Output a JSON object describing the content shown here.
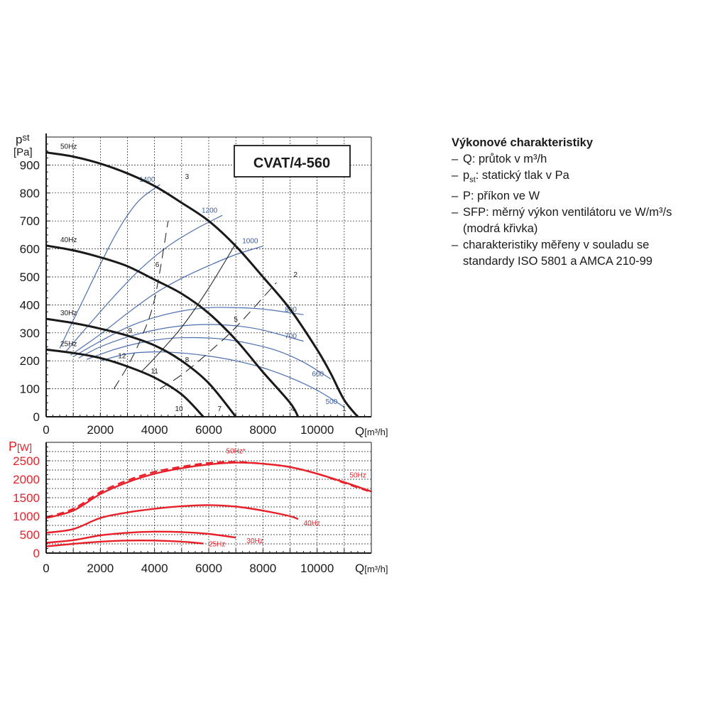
{
  "chart_data": [
    {
      "type": "line",
      "title": "CVAT/4-560",
      "ylabel_main": "p",
      "ylabel_sub": "st",
      "yunit": "[Pa]",
      "xlabel": "Q",
      "xunit": "[m³/h]",
      "xlim": [
        0,
        12000
      ],
      "ylim": [
        0,
        1000
      ],
      "grid": true,
      "xticks": [
        0,
        2000,
        4000,
        6000,
        8000,
        10000
      ],
      "yticks": [
        0,
        100,
        200,
        300,
        400,
        500,
        600,
        700,
        800,
        900
      ],
      "series": [
        {
          "name": "50Hz",
          "color": "#1a1a1a",
          "x": [
            0,
            1000,
            2000,
            3000,
            4000,
            5000,
            6000,
            7000,
            8000,
            9000,
            10000,
            10500,
            11000,
            11500
          ],
          "y": [
            945,
            930,
            905,
            870,
            825,
            765,
            700,
            610,
            500,
            385,
            240,
            155,
            60,
            0
          ]
        },
        {
          "name": "40Hz",
          "color": "#1a1a1a",
          "x": [
            0,
            1000,
            2000,
            3000,
            4000,
            5000,
            6000,
            7000,
            8000,
            9000,
            9300
          ],
          "y": [
            612,
            595,
            570,
            538,
            490,
            440,
            370,
            275,
            160,
            50,
            0
          ]
        },
        {
          "name": "30Hz",
          "color": "#1a1a1a",
          "x": [
            0,
            1000,
            2000,
            3000,
            4000,
            5000,
            6000,
            7000
          ],
          "y": [
            350,
            335,
            315,
            290,
            255,
            200,
            120,
            0
          ]
        },
        {
          "name": "25Hz",
          "color": "#1a1a1a",
          "x": [
            0,
            1000,
            2000,
            3000,
            4000,
            5000,
            5800
          ],
          "y": [
            240,
            228,
            210,
            180,
            140,
            80,
            0
          ]
        }
      ],
      "sfp_curves": [
        {
          "label": "1400",
          "x": [
            500,
            1000,
            1500,
            2000,
            2500,
            3000,
            3500,
            4200
          ],
          "y": [
            245,
            345,
            445,
            545,
            640,
            720,
            780,
            830
          ]
        },
        {
          "label": "1200",
          "x": [
            700,
            1500,
            2500,
            3500,
            4500,
            5500,
            6500
          ],
          "y": [
            230,
            320,
            430,
            530,
            610,
            670,
            720
          ]
        },
        {
          "label": "1000",
          "x": [
            900,
            2000,
            3000,
            4000,
            5000,
            6000,
            7000,
            8000
          ],
          "y": [
            220,
            295,
            370,
            440,
            495,
            540,
            580,
            610
          ]
        },
        {
          "label": "800",
          "x": [
            1000,
            2000,
            3000,
            4000,
            5000,
            6000,
            7000,
            8000,
            9500
          ],
          "y": [
            215,
            270,
            320,
            355,
            378,
            390,
            390,
            385,
            365
          ]
        },
        {
          "label": "700",
          "x": [
            1200,
            2000,
            3000,
            4000,
            5000,
            6000,
            7000,
            8000,
            9500
          ],
          "y": [
            210,
            250,
            285,
            310,
            325,
            330,
            325,
            310,
            270
          ]
        },
        {
          "label": "600",
          "x": [
            1500,
            2500,
            3500,
            4500,
            5500,
            6500,
            7500,
            8500,
            9500,
            10500
          ],
          "y": [
            205,
            240,
            265,
            280,
            283,
            278,
            262,
            237,
            195,
            135
          ]
        },
        {
          "label": "500",
          "x": [
            2000,
            3000,
            4000,
            5000,
            6000,
            7000,
            8000,
            9000,
            10000,
            11000
          ],
          "y": [
            200,
            225,
            232,
            228,
            217,
            200,
            175,
            140,
            95,
            35
          ]
        }
      ],
      "system_curves": [
        {
          "x": [
            3500,
            4000,
            5000,
            6000,
            7000
          ],
          "y": [
            160,
            210,
            320,
            460,
            620
          ],
          "dashed": false
        },
        {
          "x": [
            2500,
            3000,
            3500,
            4000,
            4500
          ],
          "y": [
            100,
            180,
            280,
            420,
            700
          ],
          "dashed": true
        },
        {
          "x": [
            4200,
            5000,
            6000,
            7000,
            8500
          ],
          "y": [
            100,
            150,
            230,
            320,
            480
          ],
          "dashed": true
        }
      ],
      "point_labels": [
        "1",
        "2",
        "3",
        "4",
        "5",
        "6",
        "7",
        "8",
        "9",
        "10",
        "11",
        "12"
      ]
    },
    {
      "type": "line",
      "ylabel": "P",
      "yunit": "[W]",
      "xlabel": "Q",
      "xunit": "[m³/h]",
      "xlim": [
        0,
        12000
      ],
      "ylim": [
        0,
        3000
      ],
      "grid": true,
      "xticks": [
        0,
        2000,
        4000,
        6000,
        8000,
        10000
      ],
      "yticks": [
        0,
        500,
        1000,
        1500,
        2000,
        2500
      ],
      "series": [
        {
          "name": "50Hz*",
          "color": "#e8202a",
          "dashed": true,
          "x": [
            0,
            1000,
            2000,
            3000,
            4000,
            5000,
            6000,
            7000,
            8000,
            9000,
            10000,
            11000,
            12000
          ],
          "y": [
            970,
            1200,
            1650,
            1970,
            2200,
            2340,
            2440,
            2470,
            2420,
            2330,
            2150,
            1900,
            1650
          ]
        },
        {
          "name": "50Hz",
          "color": "#e8202a",
          "dashed": false,
          "x": [
            0,
            1000,
            2000,
            3000,
            4000,
            5000,
            6000,
            7000,
            8000,
            9000,
            10000,
            11000,
            12000
          ],
          "y": [
            950,
            1150,
            1600,
            1920,
            2150,
            2300,
            2400,
            2450,
            2420,
            2330,
            2150,
            1920,
            1670
          ]
        },
        {
          "name": "40Hz",
          "color": "#e8202a",
          "dashed": false,
          "x": [
            0,
            1000,
            2000,
            3000,
            4000,
            5000,
            6000,
            7000,
            8000,
            9000,
            9300
          ],
          "y": [
            550,
            650,
            950,
            1100,
            1200,
            1270,
            1300,
            1260,
            1150,
            1000,
            920
          ]
        },
        {
          "name": "30Hz",
          "color": "#e8202a",
          "dashed": false,
          "x": [
            0,
            1000,
            2000,
            3000,
            4000,
            5000,
            6000,
            7000
          ],
          "y": [
            280,
            350,
            480,
            550,
            580,
            570,
            520,
            420
          ]
        },
        {
          "name": "25Hz",
          "color": "#e8202a",
          "dashed": false,
          "x": [
            0,
            1000,
            2000,
            3000,
            4000,
            5000,
            5800
          ],
          "y": [
            180,
            250,
            310,
            340,
            340,
            310,
            260
          ]
        }
      ]
    }
  ],
  "legend": {
    "title": "Výkonové charakteristiky",
    "items": [
      {
        "dash": "–",
        "text": "Q: průtok v m³/h"
      },
      {
        "dash": "–",
        "text_main": "p",
        "text_sub": "st",
        "text_rest": ": statický tlak v Pa"
      },
      {
        "dash": "–",
        "text": "P: příkon ve W"
      },
      {
        "dash": "–",
        "text": "SFP: měrný výkon ventilátoru ve W/m³/s"
      },
      {
        "dash": "",
        "text": "(modrá křivka)"
      },
      {
        "dash": "–",
        "text": "charakteristiky měřeny v souladu se"
      },
      {
        "dash": "",
        "text": "standardy ISO 5801 a AMCA 210-99"
      }
    ]
  }
}
